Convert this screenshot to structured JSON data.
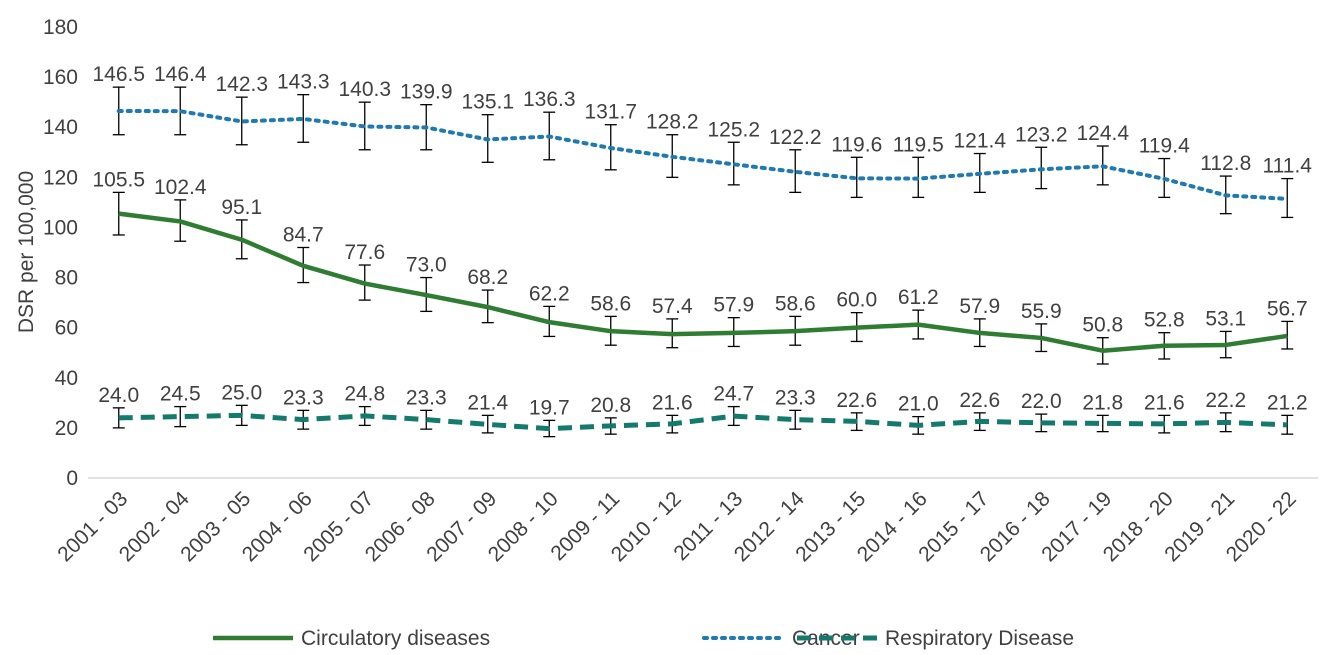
{
  "chart_data": {
    "type": "line",
    "title": "",
    "xlabel": "",
    "ylabel": "DSR per 100,000",
    "ylim": [
      0,
      180
    ],
    "yticks": [
      0,
      20,
      40,
      60,
      80,
      100,
      120,
      140,
      160,
      180
    ],
    "grid": false,
    "legend_position": "bottom",
    "categories": [
      "2001 - 03",
      "2002 - 04",
      "2003 - 05",
      "2004 - 06",
      "2005 - 07",
      "2006 - 08",
      "2007 - 09",
      "2008 - 10",
      "2009 - 11",
      "2010 - 12",
      "2011 - 13",
      "2012 - 14",
      "2013 - 15",
      "2014 - 16",
      "2015 - 17",
      "2016 - 18",
      "2017 - 19",
      "2018 - 20",
      "2019 - 21",
      "2020 - 22"
    ],
    "series": [
      {
        "name": "Circulatory diseases",
        "style": "solid",
        "color": "#2e7d32",
        "values": [
          105.5,
          102.4,
          95.1,
          84.7,
          77.6,
          73.0,
          68.2,
          62.2,
          58.6,
          57.4,
          57.9,
          58.6,
          60.0,
          61.2,
          57.9,
          55.9,
          50.8,
          52.8,
          53.1,
          56.7
        ],
        "labels": [
          "105.5",
          "102.4",
          "95.1",
          "84.7",
          "77.6",
          "73.0",
          "68.2",
          "62.2",
          "58.6",
          "57.4",
          "57.9",
          "58.6",
          "60.0",
          "61.2",
          "57.9",
          "55.9",
          "50.8",
          "52.8",
          "53.1",
          "56.7"
        ],
        "err_low": [
          97,
          94.5,
          87.5,
          78,
          71,
          66.5,
          62,
          56.5,
          53,
          52,
          52.5,
          53,
          54.5,
          55.5,
          52.5,
          50.5,
          45.5,
          47.5,
          48,
          51.5
        ],
        "err_high": [
          114,
          111,
          103,
          92,
          85,
          80,
          75,
          68.5,
          64.5,
          63.5,
          64,
          64.5,
          66,
          67,
          63.5,
          61.5,
          56,
          58,
          58.5,
          62.5
        ]
      },
      {
        "name": "Cancer",
        "style": "dotted",
        "color": "#1f7ab0",
        "values": [
          146.5,
          146.4,
          142.3,
          143.3,
          140.3,
          139.9,
          135.1,
          136.3,
          131.7,
          128.2,
          125.2,
          122.2,
          119.6,
          119.5,
          121.4,
          123.2,
          124.4,
          119.4,
          112.8,
          111.4
        ],
        "labels": [
          "146.5",
          "146.4",
          "142.3",
          "143.3",
          "140.3",
          "139.9",
          "135.1",
          "136.3",
          "131.7",
          "128.2",
          "125.2",
          "122.2",
          "119.6",
          "119.5",
          "121.4",
          "123.2",
          "124.4",
          "119.4",
          "112.8",
          "111.4"
        ],
        "err_low": [
          137,
          137,
          133,
          134,
          131,
          131,
          126,
          127,
          123,
          120,
          117,
          114,
          112,
          112,
          114,
          115.5,
          117,
          112,
          105.5,
          104
        ],
        "err_high": [
          156,
          156,
          152,
          153,
          150,
          149,
          145,
          146,
          141,
          137,
          134,
          131,
          128,
          128,
          129.5,
          132,
          132.5,
          127.5,
          120.5,
          119.5
        ]
      },
      {
        "name": "Respiratory Disease",
        "style": "dashed",
        "color": "#137a6c",
        "values": [
          24.0,
          24.5,
          25.0,
          23.3,
          24.8,
          23.3,
          21.4,
          19.7,
          20.8,
          21.6,
          24.7,
          23.3,
          22.6,
          21.0,
          22.6,
          22.0,
          21.8,
          21.6,
          22.2,
          21.2
        ],
        "labels": [
          "24.0",
          "24.5",
          "25.0",
          "23.3",
          "24.8",
          "23.3",
          "21.4",
          "19.7",
          "20.8",
          "21.6",
          "24.7",
          "23.3",
          "22.6",
          "21.0",
          "22.6",
          "22.0",
          "21.8",
          "21.6",
          "22.2",
          "21.2"
        ],
        "err_low": [
          20,
          20.5,
          21,
          19.5,
          21,
          19.5,
          18,
          16.5,
          17.5,
          18,
          21,
          19.5,
          19,
          17.5,
          19,
          18.5,
          18.5,
          18,
          18.5,
          17.5
        ],
        "err_high": [
          28,
          28.5,
          29,
          27,
          28.5,
          27,
          25,
          23,
          24,
          25,
          28.5,
          27,
          26,
          24.5,
          26,
          25.5,
          25,
          25,
          26,
          25
        ]
      }
    ]
  }
}
